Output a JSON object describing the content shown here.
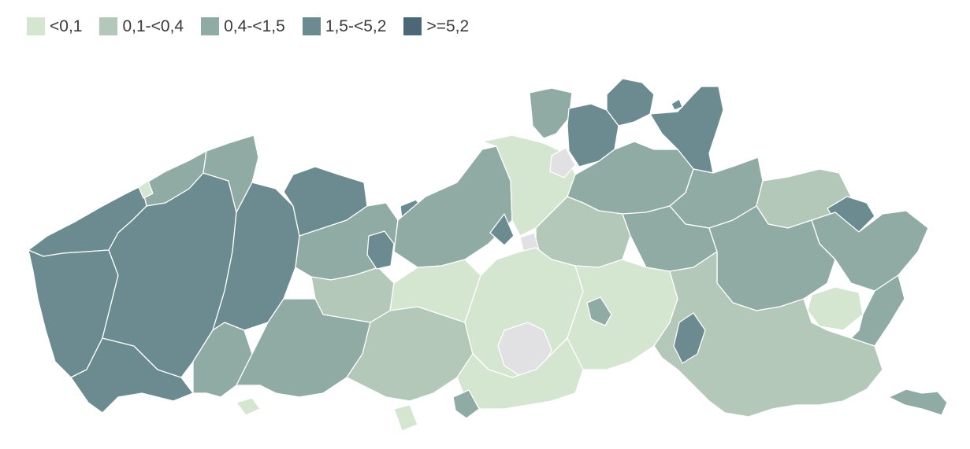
{
  "legend": [
    {
      "label": "<0,1",
      "color": "#d4e5d0"
    },
    {
      "label": "0,1-<0,4",
      "color": "#b3c8b9"
    },
    {
      "label": "0,4-<1,5",
      "color": "#90aba4"
    },
    {
      "label": "1,5-<5,2",
      "color": "#6b8b90"
    },
    {
      "label": ">=5,2",
      "color": "#4a6878"
    }
  ],
  "no_data_color": "#e1e1e3"
}
